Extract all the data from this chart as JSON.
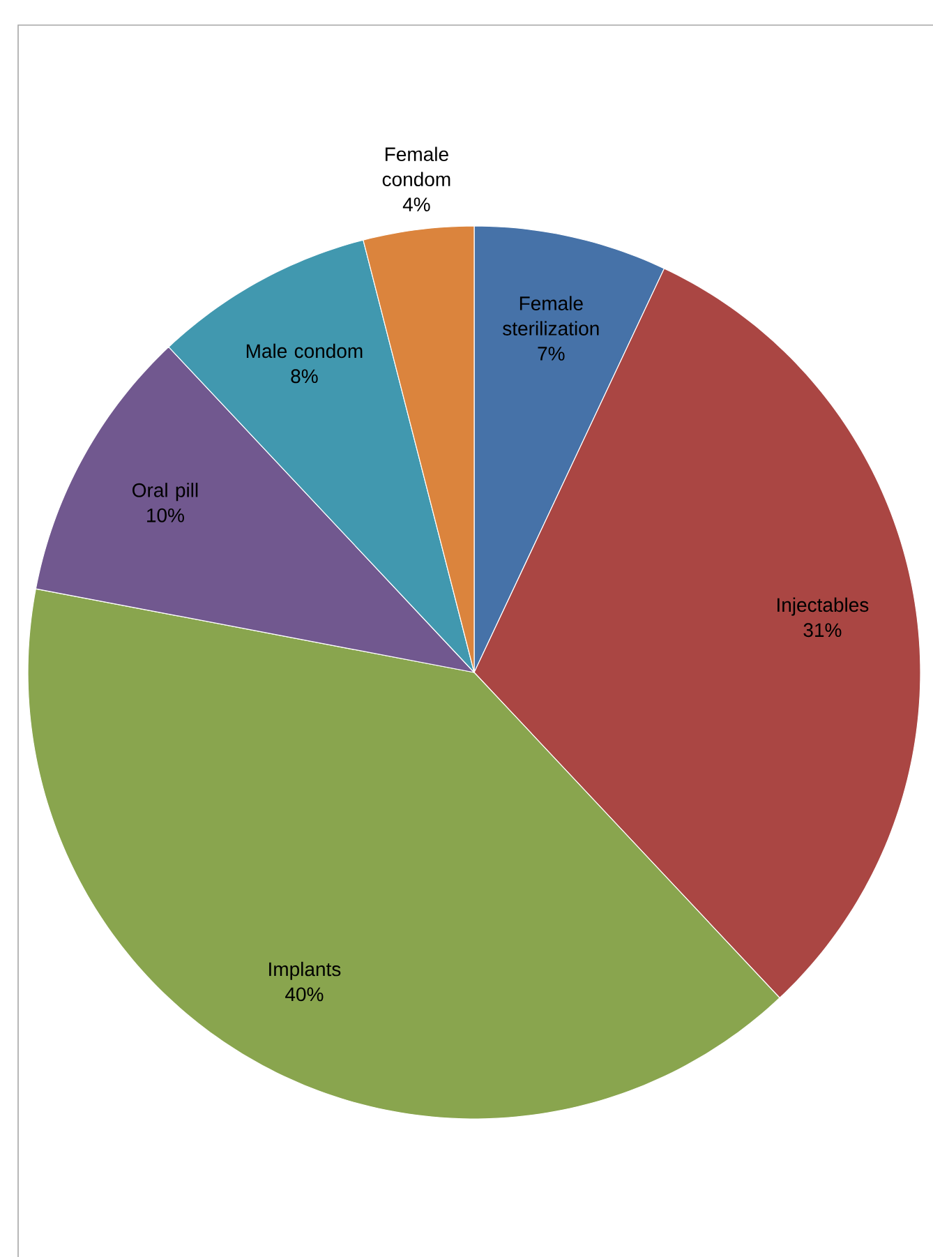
{
  "chart_data": {
    "type": "pie",
    "categories": [
      "Female sterilization",
      "Injectables",
      "Implants",
      "Oral pill",
      "Male condom",
      "Female condom"
    ],
    "values": [
      7,
      31,
      40,
      10,
      8,
      4
    ],
    "value_labels": [
      "7%",
      "31%",
      "40%",
      "10%",
      "8%",
      "4%"
    ],
    "colors": [
      "#4672a8",
      "#aa4643",
      "#89a54e",
      "#71588f",
      "#4198af",
      "#db843d"
    ]
  }
}
